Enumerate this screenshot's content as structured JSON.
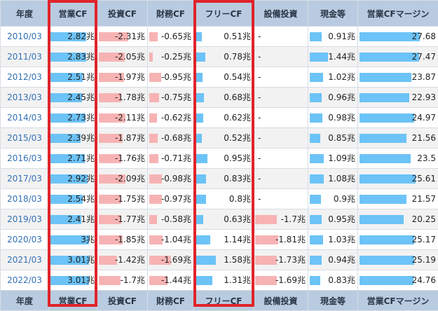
{
  "headers": [
    "年度",
    "営業CF",
    "投資CF",
    "財務CF",
    "フリーCF",
    "設備投資",
    "現金等",
    "営業CFマージン"
  ],
  "rows": [
    {
      "year": "2010/03",
      "op": "2.82兆",
      "inv": "-2.31兆",
      "fin": "-0.65兆",
      "free": "0.51兆",
      "capex": "-",
      "cash": "0.91兆",
      "margin": "27.68"
    },
    {
      "year": "2011/03",
      "op": "2.83兆",
      "inv": "-2.05兆",
      "fin": "-0.25兆",
      "free": "0.78兆",
      "capex": "-",
      "cash": "1.44兆",
      "margin": "27.47"
    },
    {
      "year": "2012/03",
      "op": "2.51兆",
      "inv": "-1.97兆",
      "fin": "-0.95兆",
      "free": "0.54兆",
      "capex": "-",
      "cash": "1.02兆",
      "margin": "23.87"
    },
    {
      "year": "2013/03",
      "op": "2.45兆",
      "inv": "-1.78兆",
      "fin": "-0.75兆",
      "free": "0.68兆",
      "capex": "-",
      "cash": "0.96兆",
      "margin": "22.93"
    },
    {
      "year": "2014/03",
      "op": "2.73兆",
      "inv": "-2.11兆",
      "fin": "-0.62兆",
      "free": "0.62兆",
      "capex": "-",
      "cash": "0.98兆",
      "margin": "24.97"
    },
    {
      "year": "2015/03",
      "op": "2.39兆",
      "inv": "-1.87兆",
      "fin": "-0.68兆",
      "free": "0.52兆",
      "capex": "-",
      "cash": "0.85兆",
      "margin": "21.56"
    },
    {
      "year": "2016/03",
      "op": "2.71兆",
      "inv": "-1.76兆",
      "fin": "-0.71兆",
      "free": "0.95兆",
      "capex": "-",
      "cash": "1.09兆",
      "margin": "23.5"
    },
    {
      "year": "2017/03",
      "op": "2.92兆",
      "inv": "-2.09兆",
      "fin": "-0.98兆",
      "free": "0.83兆",
      "capex": "-",
      "cash": "1.08兆",
      "margin": "25.61"
    },
    {
      "year": "2018/03",
      "op": "2.54兆",
      "inv": "-1.75兆",
      "fin": "-0.97兆",
      "free": "0.8兆",
      "capex": "-",
      "cash": "0.9兆",
      "margin": "21.57"
    },
    {
      "year": "2019/03",
      "op": "2.41兆",
      "inv": "-1.77兆",
      "fin": "-0.58兆",
      "free": "0.63兆",
      "capex": "-1.7兆",
      "cash": "0.95兆",
      "margin": "20.25"
    },
    {
      "year": "2020/03",
      "op": "3兆",
      "inv": "-1.85兆",
      "fin": "-1.04兆",
      "free": "1.14兆",
      "capex": "-1.81兆",
      "cash": "1.03兆",
      "margin": "25.17"
    },
    {
      "year": "2021/03",
      "op": "3.01兆",
      "inv": "-1.42兆",
      "fin": "-1.69兆",
      "free": "1.58兆",
      "capex": "-1.73兆",
      "cash": "0.94兆",
      "margin": "25.19"
    },
    {
      "year": "2022/03",
      "op": "3.01兆",
      "inv": "-1.7兆",
      "fin": "-1.44兆",
      "free": "1.31兆",
      "capex": "-1.69兆",
      "cash": "0.83兆",
      "margin": "24.76"
    }
  ],
  "bar_values": {
    "op": [
      2.82,
      2.83,
      2.51,
      2.45,
      2.73,
      2.39,
      2.71,
      2.92,
      2.54,
      2.41,
      3.0,
      3.01,
      3.01
    ],
    "inv": [
      2.31,
      2.05,
      1.97,
      1.78,
      2.11,
      1.87,
      1.76,
      2.09,
      1.75,
      1.77,
      1.85,
      1.42,
      1.7
    ],
    "fin": [
      0.65,
      0.25,
      0.95,
      0.75,
      0.62,
      0.68,
      0.71,
      0.98,
      0.97,
      0.58,
      1.04,
      1.69,
      1.44
    ],
    "free": [
      0.51,
      0.78,
      0.54,
      0.68,
      0.62,
      0.52,
      0.95,
      0.83,
      0.8,
      0.63,
      1.14,
      1.58,
      1.31
    ],
    "capex": [
      null,
      null,
      null,
      null,
      null,
      null,
      null,
      null,
      null,
      1.7,
      1.81,
      1.73,
      1.69
    ],
    "cash": [
      0.91,
      1.44,
      1.02,
      0.96,
      0.98,
      0.85,
      1.09,
      1.08,
      0.9,
      0.95,
      1.03,
      0.94,
      0.83
    ],
    "margin": [
      27.68,
      27.47,
      23.87,
      22.93,
      24.97,
      21.56,
      23.5,
      25.61,
      21.57,
      20.25,
      25.17,
      25.19,
      24.76
    ]
  },
  "colors": {
    "positive_bar": "#6cc3f7",
    "negative_bar": "#f7b3b3",
    "header_bg": "#b9cbe0",
    "highlight": "#e0242b",
    "year_link": "#3370b5"
  }
}
